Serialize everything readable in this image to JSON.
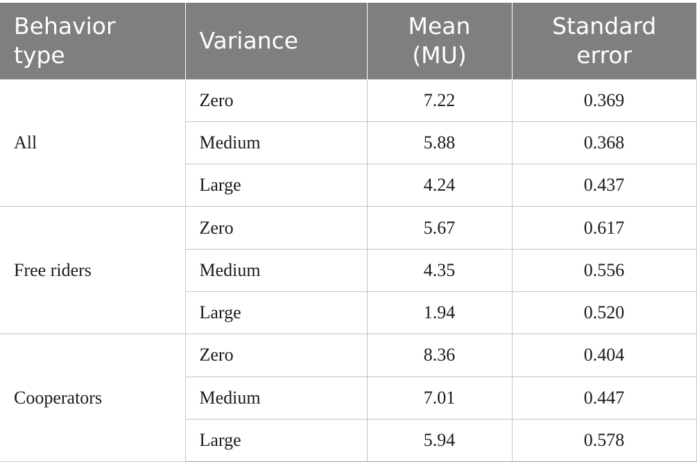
{
  "table": {
    "headers": {
      "behavior_type": "Behavior type",
      "variance": "Variance",
      "mean": "Mean (MU)",
      "standard_error": "Standard error"
    },
    "groups": [
      {
        "name": "All",
        "rows": [
          {
            "variance": "Zero",
            "mean": "7.22",
            "se": "0.369"
          },
          {
            "variance": "Medium",
            "mean": "5.88",
            "se": "0.368"
          },
          {
            "variance": "Large",
            "mean": "4.24",
            "se": "0.437"
          }
        ]
      },
      {
        "name": "Free riders",
        "rows": [
          {
            "variance": "Zero",
            "mean": "5.67",
            "se": "0.617"
          },
          {
            "variance": "Medium",
            "mean": "4.35",
            "se": "0.556"
          },
          {
            "variance": "Large",
            "mean": "1.94",
            "se": "0.520"
          }
        ]
      },
      {
        "name": "Cooperators",
        "rows": [
          {
            "variance": "Zero",
            "mean": "8.36",
            "se": "0.404"
          },
          {
            "variance": "Medium",
            "mean": "7.01",
            "se": "0.447"
          },
          {
            "variance": "Large",
            "mean": "5.94",
            "se": "0.578"
          }
        ]
      }
    ]
  }
}
